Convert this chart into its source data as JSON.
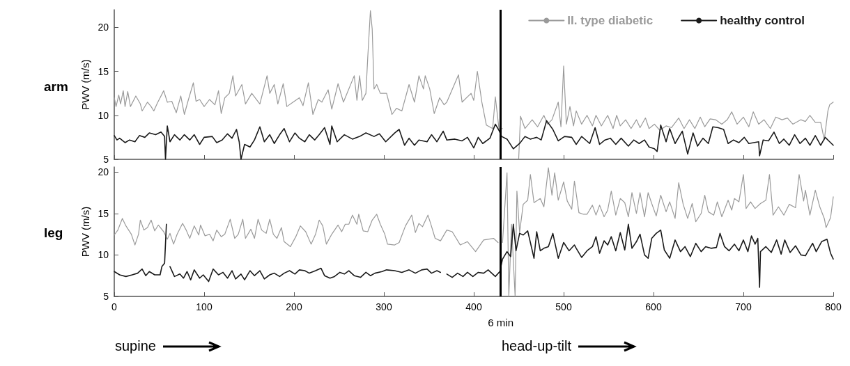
{
  "chart_data": [
    {
      "type": "line",
      "title": "arm",
      "ylabel": "PWV (m/s)",
      "xlim": [
        0,
        800
      ],
      "xticks": [
        0,
        100,
        200,
        300,
        400,
        500,
        600,
        700,
        800
      ],
      "ylim": [
        5,
        22
      ],
      "yticks": [
        5,
        10,
        15,
        20
      ],
      "tick_labels": "y",
      "legend": "top right",
      "marker": "none",
      "line_style": "solid",
      "ref_lines": [
        {
          "axis": "x",
          "value": 430,
          "color": "#000000"
        }
      ],
      "series": [
        {
          "name": "II. type diabetic",
          "color": "#9a9a9a",
          "x": [
            0,
            2,
            5,
            7,
            10,
            12,
            15,
            18,
            24,
            29,
            31,
            37,
            41,
            44,
            48,
            55,
            59,
            64,
            69,
            74,
            78,
            82,
            88,
            91,
            95,
            100,
            106,
            112,
            116,
            119,
            123,
            128,
            132,
            135,
            142,
            146,
            153,
            159,
            162,
            170,
            173,
            178,
            182,
            188,
            192,
            199,
            206,
            210,
            216,
            221,
            227,
            231,
            238,
            242,
            249,
            255,
            267,
            270,
            273,
            276,
            280,
            282,
            285,
            287,
            289,
            292,
            296,
            303,
            309,
            314,
            320,
            328,
            334,
            339,
            344,
            346,
            351,
            356,
            362,
            367,
            370,
            383,
            387,
            397,
            400,
            404,
            409,
            414,
            421,
            424,
            428,
            432,
            440,
            450,
            452,
            457,
            465,
            471,
            478,
            482,
            487,
            494,
            497,
            500,
            503,
            507,
            511,
            514,
            520,
            526,
            532,
            536,
            542,
            549,
            555,
            559,
            563,
            569,
            575,
            581,
            585,
            591,
            595,
            601,
            607,
            614,
            620,
            628,
            634,
            640,
            646,
            652,
            657,
            663,
            669,
            676,
            682,
            687,
            693,
            700,
            706,
            711,
            717,
            723,
            730,
            736,
            743,
            749,
            755,
            764,
            769,
            774,
            780,
            786,
            790,
            794,
            796,
            800
          ],
          "values": [
            12,
            11,
            12.3,
            11.3,
            12.8,
            11,
            12.7,
            11,
            12.2,
            11.3,
            10.5,
            11.5,
            11,
            10.5,
            11.4,
            12.8,
            11.5,
            11.6,
            10.3,
            12.2,
            10.1,
            11.6,
            13.7,
            11.6,
            11.8,
            11,
            11.8,
            11.2,
            12.8,
            10.2,
            12,
            12.5,
            14.5,
            12.2,
            13.5,
            11.3,
            12.5,
            11.7,
            11.3,
            14.5,
            12.5,
            13.5,
            11.3,
            13.6,
            11,
            11.5,
            12,
            11.1,
            13.7,
            10.1,
            11.8,
            11.5,
            12.9,
            10.7,
            13.6,
            11.5,
            14.5,
            11.7,
            14.5,
            11.7,
            12.5,
            16.5,
            21.9,
            19.8,
            13,
            13.5,
            12.5,
            12.5,
            10.1,
            10.8,
            10.5,
            13.5,
            11.5,
            14.5,
            13,
            14.5,
            13,
            10.2,
            12,
            11.2,
            11.5,
            14.6,
            11.5,
            12.5,
            11.7,
            15,
            11.5,
            8.9,
            8.5,
            12.1,
            8.5,
            8.5,
            null,
            5.1,
            9.9,
            8.5,
            9.5,
            8.7,
            10,
            9,
            9.5,
            11.5,
            8.7,
            15.6,
            9,
            11,
            8.8,
            10.5,
            9,
            10,
            8.8,
            10,
            8.8,
            10,
            8.5,
            10,
            8.8,
            9.5,
            8.5,
            9.5,
            8.6,
            9.7,
            8.5,
            9,
            8.3,
            8.8,
            8.6,
            9.7,
            8.5,
            9.5,
            8.5,
            9.8,
            8.7,
            9.6,
            9.5,
            9,
            9.5,
            10.4,
            9,
            9.8,
            8.7,
            10.4,
            9,
            9.5,
            8.5,
            9.8,
            9.5,
            9.7,
            9,
            9.5,
            9.3,
            10,
            9.2,
            9.2,
            7.2,
            10.5,
            11.2,
            11.5
          ]
        },
        {
          "name": "healthy control",
          "color": "#1a1a1a",
          "x": [
            0,
            3,
            6,
            12,
            17,
            23,
            28,
            34,
            39,
            46,
            52,
            56,
            57,
            59,
            62,
            67,
            73,
            78,
            84,
            89,
            95,
            100,
            109,
            114,
            120,
            126,
            131,
            136,
            139,
            141,
            145,
            151,
            156,
            162,
            167,
            173,
            178,
            184,
            189,
            195,
            201,
            206,
            212,
            217,
            223,
            228,
            234,
            240,
            242,
            248,
            256,
            265,
            273,
            280,
            289,
            295,
            302,
            312,
            317,
            323,
            328,
            334,
            339,
            348,
            353,
            359,
            366,
            370,
            379,
            387,
            393,
            400,
            405,
            410,
            418,
            424,
            428,
            431,
            437,
            444,
            451,
            457,
            463,
            470,
            475,
            481,
            488,
            494,
            501,
            509,
            514,
            520,
            529,
            535,
            540,
            546,
            552,
            558,
            564,
            572,
            578,
            584,
            590,
            595,
            601,
            604,
            608,
            614,
            618,
            624,
            632,
            638,
            644,
            649,
            655,
            661,
            666,
            672,
            678,
            683,
            689,
            695,
            701,
            706,
            717,
            718,
            722,
            728,
            734,
            740,
            745,
            751,
            757,
            763,
            769,
            774,
            780,
            786,
            791,
            796,
            800
          ],
          "values": [
            7.7,
            7.2,
            7.4,
            6.9,
            7.2,
            7,
            7.7,
            7.5,
            8,
            7.8,
            8.1,
            7.6,
            5,
            8.8,
            7,
            7.8,
            7.2,
            7.8,
            7.2,
            7.8,
            6.7,
            7.5,
            7.6,
            6.9,
            7.2,
            7.9,
            7.4,
            8.4,
            7,
            5,
            6.7,
            6.4,
            7.2,
            8.7,
            7,
            7.8,
            6.8,
            7.8,
            8.5,
            7,
            8,
            7.4,
            7,
            7.8,
            7.2,
            7.8,
            8.6,
            6.7,
            8.8,
            7,
            7.8,
            7.3,
            7.6,
            8,
            7.6,
            7.9,
            7,
            8,
            8.4,
            6.6,
            7.4,
            6.6,
            7.2,
            7,
            7.8,
            7,
            8.2,
            7.2,
            7.3,
            7.1,
            7.5,
            6.3,
            7.5,
            6.8,
            7.4,
            9,
            8.3,
            7.6,
            7.3,
            6.2,
            6.8,
            7.6,
            7.3,
            7.5,
            7.2,
            9.4,
            8.4,
            7.1,
            7.6,
            7.5,
            6.7,
            7.6,
            6.8,
            8.6,
            6.7,
            7.2,
            7.4,
            6.7,
            7.4,
            6.5,
            7.2,
            6.8,
            7.2,
            6.4,
            6.2,
            5.9,
            8.9,
            7,
            8.5,
            6.8,
            8.2,
            5.6,
            8,
            6.5,
            7.4,
            6.8,
            8.7,
            8.6,
            8.4,
            6.8,
            7.2,
            6.9,
            7.5,
            6.8,
            7,
            5.4,
            7.2,
            7.1,
            8.1,
            6.8,
            7.3,
            6.6,
            7.8,
            6.8,
            7.4,
            6.6,
            7.7,
            6.6,
            7.5,
            7,
            6.6
          ]
        }
      ]
    },
    {
      "type": "line",
      "title": "leg",
      "ylabel": "PWV (m/s)",
      "xlim": [
        0,
        800
      ],
      "xticks": [
        0,
        100,
        200,
        300,
        400,
        500,
        600,
        700,
        800
      ],
      "ylim": [
        5,
        20.6
      ],
      "yticks": [
        5,
        10,
        15,
        20
      ],
      "marker": "none",
      "line_style": "solid",
      "ref_lines": [
        {
          "axis": "x",
          "value": 430,
          "label": "6 min",
          "color": "#000000"
        }
      ],
      "annotations": [
        "supine",
        "head-up-tilt"
      ],
      "series": [
        {
          "color": "#9a9a9a",
          "x": [
            0,
            4,
            9,
            13,
            19,
            23,
            27,
            29,
            33,
            37,
            41,
            45,
            49,
            55,
            59,
            62,
            66,
            70,
            76,
            80,
            84,
            89,
            94,
            96,
            101,
            106,
            110,
            114,
            119,
            123,
            129,
            134,
            138,
            143,
            146,
            152,
            156,
            160,
            164,
            169,
            173,
            177,
            181,
            186,
            189,
            196,
            202,
            207,
            213,
            219,
            224,
            228,
            232,
            236,
            242,
            249,
            253,
            257,
            261,
            265,
            270,
            272,
            277,
            282,
            287,
            292,
            296,
            301,
            304,
            312,
            317,
            324,
            331,
            335,
            339,
            343,
            349,
            352,
            357,
            363,
            370,
            376,
            385,
            393,
            402,
            411,
            422,
            427,
            429,
            432,
            437,
            439,
            442,
            446,
            448,
            451,
            455,
            460,
            463,
            467,
            474,
            478,
            483,
            487,
            490,
            494,
            500,
            504,
            509,
            512,
            517,
            522,
            526,
            532,
            536,
            540,
            545,
            549,
            553,
            558,
            563,
            568,
            572,
            576,
            581,
            585,
            590,
            594,
            598,
            603,
            608,
            614,
            618,
            624,
            628,
            633,
            638,
            643,
            647,
            653,
            657,
            661,
            667,
            671,
            676,
            683,
            687,
            690,
            695,
            700,
            703,
            708,
            713,
            719,
            725,
            729,
            733,
            739,
            745,
            751,
            758,
            762,
            767,
            769,
            774,
            780,
            785,
            790,
            792,
            797,
            800
          ],
          "values": [
            12.4,
            13,
            14.4,
            13.5,
            12.5,
            11.2,
            12.5,
            14.2,
            13,
            13.3,
            14.2,
            12.9,
            13.6,
            12.8,
            11.9,
            12.6,
            11.3,
            12.5,
            13.8,
            13,
            12,
            13.5,
            12.4,
            13.6,
            12.3,
            12.5,
            11.7,
            13,
            12.2,
            12.5,
            14.3,
            12,
            12.5,
            14.3,
            12,
            13.1,
            12,
            14.3,
            13,
            12.6,
            14.3,
            12.5,
            12,
            13.3,
            11.6,
            11,
            12.2,
            13.5,
            12.8,
            11.3,
            12.5,
            14.2,
            13.5,
            11.3,
            12.5,
            13.6,
            12.8,
            13.7,
            13.7,
            14.8,
            13.7,
            14.9,
            12.9,
            12.8,
            14.2,
            14.9,
            13.7,
            12.5,
            11.3,
            11.2,
            11.5,
            13.5,
            14.8,
            12.7,
            13.8,
            13.4,
            14.8,
            13.8,
            12,
            11.7,
            13,
            12.8,
            11.2,
            11.6,
            10.4,
            11.8,
            12,
            11.5,
            null,
            11.5,
            19.9,
            5,
            13.7,
            5,
            17.7,
            12.7,
            16.1,
            16.6,
            19.7,
            16.3,
            16.8,
            15.8,
            20.5,
            17.2,
            19.9,
            16.6,
            18.8,
            16.5,
            15.5,
            18.9,
            15.1,
            14.9,
            14.9,
            16,
            14.8,
            16,
            14.6,
            15.4,
            17.7,
            14.8,
            16.8,
            16.3,
            14.6,
            17.5,
            15,
            17.5,
            14.6,
            17.5,
            16.2,
            14.7,
            17.2,
            15.2,
            16.4,
            14.4,
            18.7,
            16.1,
            14.4,
            16.2,
            14,
            15,
            17.2,
            15.2,
            14.8,
            16.4,
            14.6,
            16.6,
            15.4,
            16.8,
            16.4,
            19.7,
            15.6,
            16.4,
            15.6,
            16.2,
            16.6,
            19.7,
            14.8,
            15.8,
            14.8,
            16.1,
            15.7,
            19.7,
            16.5,
            17.8,
            14.8,
            17.8,
            15.8,
            14.4,
            13.3,
            14.5,
            17
          ]
        },
        {
          "color": "#1a1a1a",
          "x": [
            0,
            6,
            13,
            20,
            26,
            31,
            35,
            39,
            45,
            51,
            53,
            56,
            58,
            60,
            62,
            67,
            73,
            77,
            81,
            85,
            89,
            95,
            99,
            105,
            110,
            116,
            121,
            126,
            131,
            135,
            141,
            145,
            151,
            156,
            162,
            167,
            173,
            178,
            184,
            189,
            195,
            201,
            206,
            212,
            217,
            224,
            230,
            234,
            240,
            245,
            251,
            256,
            261,
            267,
            274,
            280,
            285,
            290,
            298,
            303,
            312,
            320,
            328,
            335,
            342,
            348,
            353,
            359,
            363,
            366,
            370,
            376,
            382,
            388,
            393,
            399,
            405,
            411,
            416,
            424,
            429,
            432,
            437,
            441,
            444,
            447,
            451,
            455,
            460,
            463,
            467,
            470,
            474,
            478,
            483,
            488,
            494,
            500,
            506,
            512,
            514,
            520,
            526,
            532,
            536,
            540,
            545,
            549,
            553,
            558,
            563,
            568,
            572,
            576,
            581,
            585,
            590,
            594,
            598,
            603,
            608,
            612,
            618,
            624,
            630,
            635,
            641,
            647,
            653,
            658,
            664,
            670,
            674,
            679,
            684,
            690,
            695,
            700,
            705,
            709,
            713,
            716,
            718,
            719,
            725,
            731,
            737,
            742,
            746,
            752,
            758,
            764,
            769,
            777,
            781,
            787,
            793,
            797,
            800
          ],
          "values": [
            8,
            7.6,
            7.4,
            7.6,
            7.8,
            8.3,
            7.5,
            8,
            7.6,
            7.6,
            8.6,
            9,
            13.7,
            null,
            8.6,
            7.4,
            7.7,
            7.2,
            8,
            7,
            8.2,
            7.2,
            7.6,
            6.8,
            8.3,
            7.6,
            7.9,
            7.2,
            8.1,
            7.1,
            7.7,
            7,
            8.1,
            7.5,
            8.1,
            7.1,
            7.6,
            7.8,
            7.4,
            7.8,
            8.1,
            7.7,
            8.2,
            8.1,
            7.8,
            8.1,
            8.4,
            7.5,
            7.2,
            7.4,
            7.9,
            7.7,
            8.1,
            7.5,
            7.3,
            7.9,
            7.5,
            7.8,
            8,
            8.2,
            8.1,
            7.9,
            8.2,
            7.8,
            8.2,
            8.3,
            7.8,
            8.1,
            7.9,
            null,
            7.7,
            7.3,
            7.8,
            7.4,
            7.9,
            7.4,
            7.9,
            7.8,
            8.2,
            7.4,
            8,
            9.5,
            10.4,
            9.8,
            13.7,
            10.5,
            12.6,
            12.4,
            12.9,
            11.5,
            9.6,
            12.8,
            10.5,
            10.8,
            11,
            12.6,
            9.6,
            11.5,
            10.5,
            11.2,
            10.8,
            9.7,
            10.5,
            11,
            12.2,
            10.2,
            11.7,
            11.2,
            12.2,
            10.5,
            12.7,
            10.6,
            13.7,
            10.8,
            11.6,
            12.5,
            10,
            9.6,
            12,
            12.6,
            13,
            10.6,
            9.6,
            11.8,
            10.4,
            11,
            9.8,
            11.4,
            10.4,
            11,
            10.8,
            10.9,
            12.6,
            11,
            10.5,
            11.3,
            10.5,
            11.8,
            10.4,
            12.3,
            11.3,
            12,
            6.1,
            10.4,
            11,
            10.3,
            11.8,
            10.1,
            11.8,
            10.3,
            11.1,
            10,
            9.9,
            11.4,
            10.4,
            11.6,
            11.9,
            10.2,
            9.5
          ]
        }
      ]
    }
  ]
}
